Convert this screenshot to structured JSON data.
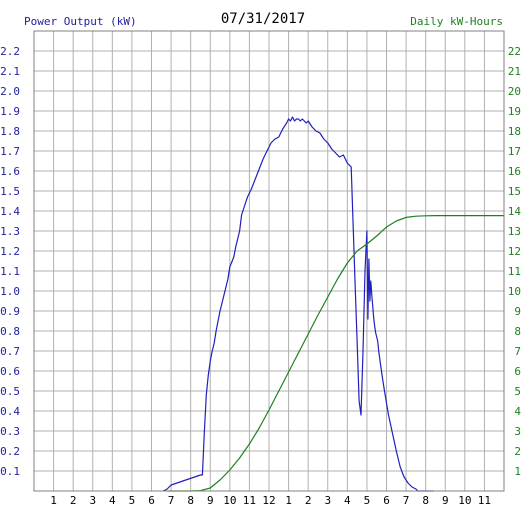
{
  "chart_data": {
    "type": "line",
    "title": "07/31/2017",
    "left_axis_label": "Power Output (kW)",
    "right_axis_label": "Daily kW-Hours",
    "grid": true,
    "x_tick_labels": [
      "1",
      "2",
      "3",
      "4",
      "5",
      "6",
      "7",
      "8",
      "9",
      "10",
      "11",
      "12",
      "1",
      "2",
      "3",
      "4",
      "5",
      "6",
      "7",
      "8",
      "9",
      "10",
      "11"
    ],
    "xlim": [
      0,
      24
    ],
    "y_left_ticks": [
      "0.1",
      "0.2",
      "0.3",
      "0.4",
      "0.5",
      "0.6",
      "0.7",
      "0.8",
      "0.9",
      "1.0",
      "1.1",
      "1.2",
      "1.3",
      "1.4",
      "1.5",
      "1.6",
      "1.7",
      "1.8",
      "1.9",
      "2.0",
      "2.1",
      "2.2"
    ],
    "ylim_left": [
      0,
      2.3
    ],
    "y_right_ticks": [
      "1",
      "2",
      "3",
      "4",
      "5",
      "6",
      "7",
      "8",
      "9",
      "10",
      "11",
      "12",
      "13",
      "14",
      "15",
      "16",
      "17",
      "18",
      "19",
      "20",
      "21",
      "22"
    ],
    "ylim_right": [
      0,
      23
    ],
    "colors": {
      "power": "#2020c0",
      "energy": "#208020",
      "left_axis_text": "#2020a0",
      "right_axis_text": "#208020",
      "grid": "#b0b0b0",
      "frame": "#808080"
    },
    "series": [
      {
        "axis": "left",
        "color": "#2020c0",
        "x": [
          6.6,
          6.8,
          7.0,
          7.3,
          7.6,
          7.9,
          8.2,
          8.5,
          8.6,
          8.7,
          8.8,
          8.9,
          9.0,
          9.1,
          9.2,
          9.3,
          9.5,
          9.7,
          9.9,
          10.0,
          10.2,
          10.3,
          10.5,
          10.6,
          10.8,
          10.9,
          11.0,
          11.1,
          11.3,
          11.5,
          11.7,
          11.9,
          12.1,
          12.3,
          12.5,
          12.7,
          12.9,
          13.0,
          13.1,
          13.2,
          13.3,
          13.4,
          13.5,
          13.6,
          13.7,
          13.8,
          13.9,
          14.0,
          14.2,
          14.4,
          14.6,
          14.8,
          15.0,
          15.2,
          15.4,
          15.6,
          15.8,
          16.0,
          16.2,
          16.4,
          16.5,
          16.6,
          16.7,
          16.8,
          16.9,
          17.0,
          17.05,
          17.1,
          17.15,
          17.2,
          17.25,
          17.3,
          17.35,
          17.4,
          17.45,
          17.5,
          17.55,
          17.6,
          17.7,
          17.8,
          17.9,
          18.0,
          18.1,
          18.3,
          18.5,
          18.7,
          18.9,
          19.1,
          19.3,
          19.5,
          19.6,
          19.7,
          19.8,
          19.9,
          20.0,
          20.1,
          20.2,
          20.3,
          20.4
        ],
        "y": [
          0.0,
          0.01,
          0.03,
          0.04,
          0.05,
          0.06,
          0.07,
          0.08,
          0.08,
          0.3,
          0.48,
          0.58,
          0.65,
          0.7,
          0.74,
          0.8,
          0.9,
          0.98,
          1.06,
          1.12,
          1.17,
          1.22,
          1.3,
          1.38,
          1.44,
          1.47,
          1.49,
          1.51,
          1.56,
          1.61,
          1.66,
          1.7,
          1.74,
          1.76,
          1.77,
          1.81,
          1.84,
          1.86,
          1.85,
          1.87,
          1.85,
          1.86,
          1.86,
          1.85,
          1.86,
          1.85,
          1.84,
          1.85,
          1.82,
          1.8,
          1.79,
          1.76,
          1.74,
          1.71,
          1.69,
          1.67,
          1.68,
          1.64,
          1.62,
          1.02,
          0.75,
          0.45,
          0.38,
          0.7,
          1.1,
          1.3,
          0.86,
          1.16,
          0.95,
          1.05,
          0.98,
          0.92,
          0.86,
          0.82,
          0.79,
          0.77,
          0.75,
          0.7,
          0.63,
          0.56,
          0.5,
          0.44,
          0.38,
          0.29,
          0.2,
          0.12,
          0.07,
          0.04,
          0.02,
          0.01,
          0.0,
          0.0,
          0.0,
          0.0,
          0.0,
          0.0,
          0.0,
          0.0,
          0.0
        ]
      },
      {
        "axis": "right",
        "color": "#208020",
        "x": [
          6.8,
          7.5,
          8.0,
          8.5,
          9.0,
          9.5,
          10.0,
          10.5,
          11.0,
          11.5,
          12.0,
          12.5,
          13.0,
          13.5,
          14.0,
          14.5,
          15.0,
          15.5,
          16.0,
          16.5,
          17.0,
          17.5,
          18.0,
          18.5,
          19.0,
          19.5,
          20.0,
          20.5,
          21.0,
          22.0,
          23.0,
          24.0
        ],
        "y": [
          0.0,
          0.0,
          0.0,
          0.02,
          0.15,
          0.55,
          1.05,
          1.65,
          2.35,
          3.15,
          4.05,
          5.0,
          5.95,
          6.9,
          7.85,
          8.8,
          9.7,
          10.6,
          11.4,
          12.0,
          12.35,
          12.75,
          13.2,
          13.5,
          13.68,
          13.74,
          13.76,
          13.77,
          13.77,
          13.77,
          13.77,
          13.77
        ]
      }
    ]
  }
}
